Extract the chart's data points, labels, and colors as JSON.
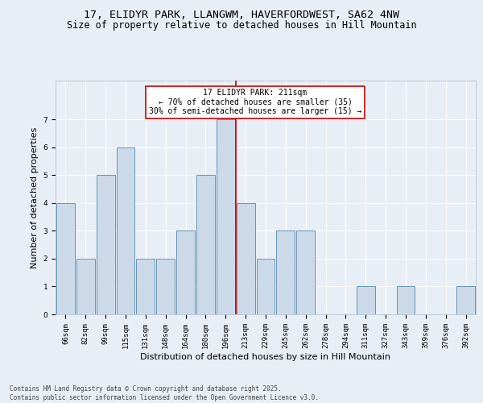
{
  "title_line1": "17, ELIDYR PARK, LLANGWM, HAVERFORDWEST, SA62 4NW",
  "title_line2": "Size of property relative to detached houses in Hill Mountain",
  "xlabel": "Distribution of detached houses by size in Hill Mountain",
  "ylabel": "Number of detached properties",
  "footnote": "Contains HM Land Registry data © Crown copyright and database right 2025.\nContains public sector information licensed under the Open Government Licence v3.0.",
  "bins": [
    "66sqm",
    "82sqm",
    "99sqm",
    "115sqm",
    "131sqm",
    "148sqm",
    "164sqm",
    "180sqm",
    "196sqm",
    "213sqm",
    "229sqm",
    "245sqm",
    "262sqm",
    "278sqm",
    "294sqm",
    "311sqm",
    "327sqm",
    "343sqm",
    "359sqm",
    "376sqm",
    "392sqm"
  ],
  "values": [
    4,
    2,
    5,
    6,
    2,
    2,
    3,
    5,
    7,
    4,
    2,
    3,
    3,
    0,
    0,
    1,
    0,
    1,
    0,
    0,
    1
  ],
  "bar_color": "#ccd9e8",
  "bar_edge_color": "#5588aa",
  "vline_x_index": 8,
  "vline_color": "#cc0000",
  "annotation_text": "17 ELIDYR PARK: 211sqm\n← 70% of detached houses are smaller (35)\n30% of semi-detached houses are larger (15) →",
  "annotation_box_color": "#ffffff",
  "annotation_box_edge": "#cc0000",
  "ylim": [
    0,
    8.4
  ],
  "yticks": [
    0,
    1,
    2,
    3,
    4,
    5,
    6,
    7
  ],
  "background_color": "#e8eef5",
  "grid_color": "#ffffff",
  "title_fontsize": 9.5,
  "subtitle_fontsize": 8.5,
  "ylabel_fontsize": 8,
  "xlabel_fontsize": 8,
  "tick_fontsize": 6.5,
  "annot_fontsize": 7,
  "footnote_fontsize": 5.5
}
